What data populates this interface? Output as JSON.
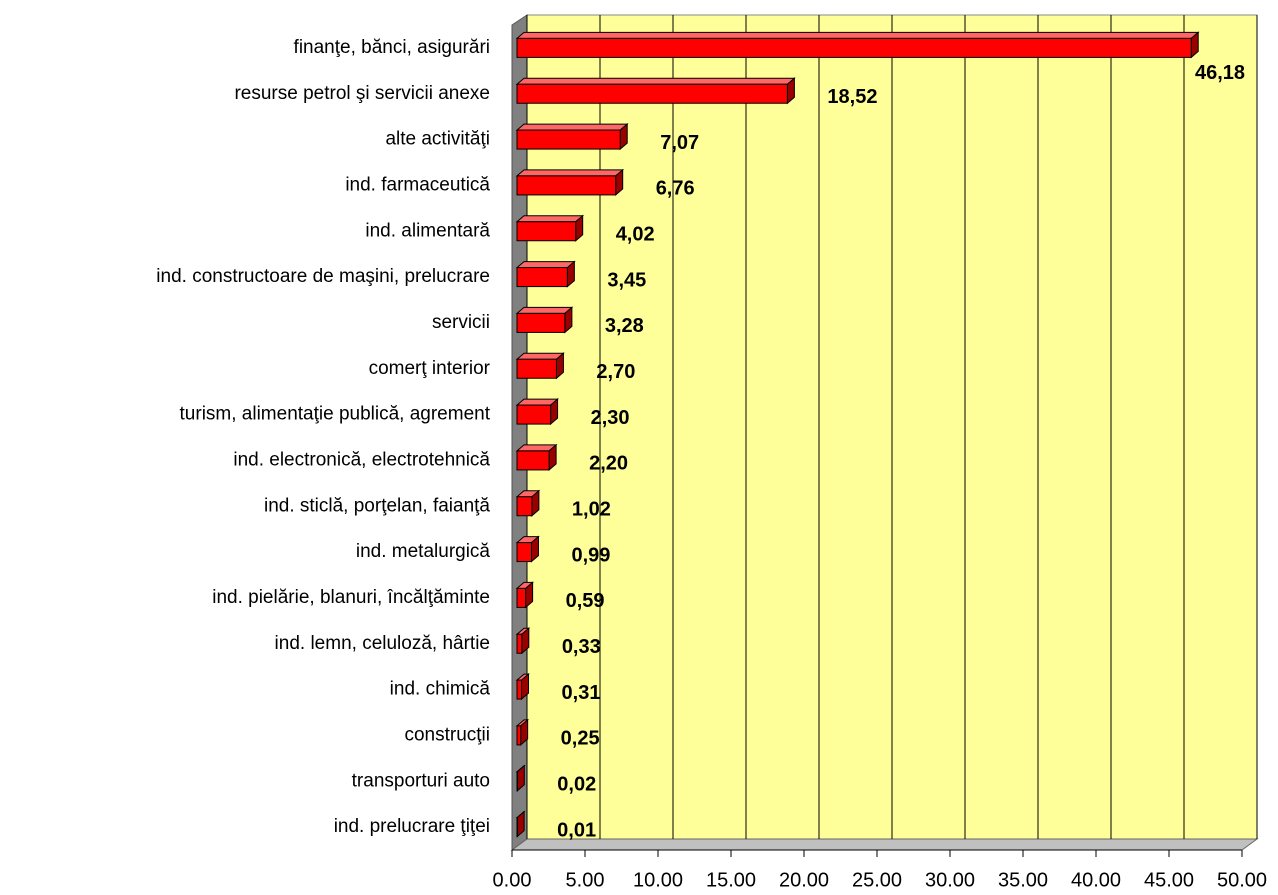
{
  "chart_data": {
    "type": "bar",
    "orientation": "horizontal",
    "categories": [
      "finanţe, bănci, asigurări",
      "resurse petrol şi servicii anexe",
      "alte activităţi",
      "ind. farmaceutică",
      "ind. alimentară",
      "ind. constructoare de maşini, prelucrare",
      "servicii",
      "comerţ interior",
      "turism, alimentaţie publică, agrement",
      "ind. electronică, electrotehnică",
      "ind. sticlă, porţelan, faianţă",
      "ind. metalurgică",
      "ind. pielărie, blanuri, încălţăminte",
      "ind. lemn, celuloză, hârtie",
      "ind. chimică",
      "construcţii",
      "transporturi auto",
      "ind. prelucrare ţiţei"
    ],
    "values": [
      46.18,
      18.52,
      7.07,
      6.76,
      4.02,
      3.45,
      3.28,
      2.7,
      2.3,
      2.2,
      1.02,
      0.99,
      0.59,
      0.33,
      0.31,
      0.25,
      0.02,
      0.01
    ],
    "value_labels": [
      "46,18",
      "18,52",
      "7,07",
      "6,76",
      "4,02",
      "3,45",
      "3,28",
      "2,70",
      "2,30",
      "2,20",
      "1,02",
      "0,99",
      "0,59",
      "0,33",
      "0,31",
      "0,25",
      "0,02",
      "0,01"
    ],
    "color": "#ff0000",
    "wall_color": "#ffff99",
    "grid": true,
    "xlim": [
      0,
      50
    ],
    "xticks": [
      {
        "value": 0,
        "label": "0.00"
      },
      {
        "value": 5,
        "label": "5.00"
      },
      {
        "value": 10,
        "label": "10.00"
      },
      {
        "value": 15,
        "label": "15.00"
      },
      {
        "value": 20,
        "label": "20.00"
      },
      {
        "value": 25,
        "label": "25.00"
      },
      {
        "value": 30,
        "label": "30.00"
      },
      {
        "value": 35,
        "label": "35.00"
      },
      {
        "value": 40,
        "label": "40.00"
      },
      {
        "value": 45,
        "label": "45.00"
      },
      {
        "value": 50,
        "label": "50.00"
      }
    ]
  }
}
